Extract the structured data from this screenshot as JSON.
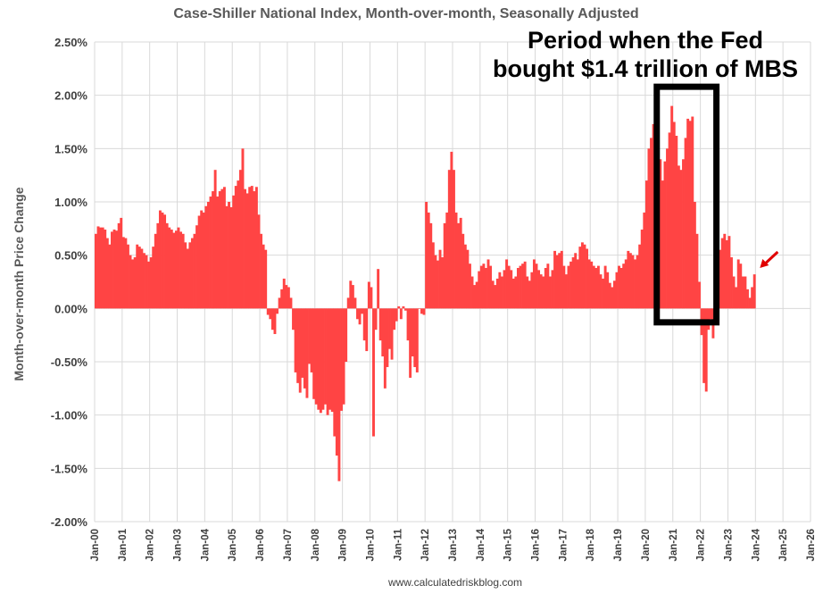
{
  "chart_data": {
    "type": "bar",
    "title": "Case-Shiller National Index, Month-over-month, Seasonally Adjusted",
    "ylabel": "Month-over-month Price Change",
    "xlabel": "",
    "ylim": [
      -2.0,
      2.5
    ],
    "y_ticks": [
      "2.50%",
      "2.00%",
      "1.50%",
      "1.00%",
      "0.50%",
      "0.00%",
      "-0.50%",
      "-1.00%",
      "-1.50%",
      "-2.00%"
    ],
    "y_tick_values": [
      2.5,
      2.0,
      1.5,
      1.0,
      0.5,
      0.0,
      -0.5,
      -1.0,
      -1.5,
      -2.0
    ],
    "x_ticks": [
      "Jan-00",
      "Jan-01",
      "Jan-02",
      "Jan-03",
      "Jan-04",
      "Jan-05",
      "Jan-06",
      "Jan-07",
      "Jan-08",
      "Jan-09",
      "Jan-10",
      "Jan-11",
      "Jan-12",
      "Jan-13",
      "Jan-14",
      "Jan-15",
      "Jan-16",
      "Jan-17",
      "Jan-18",
      "Jan-19",
      "Jan-20",
      "Jan-21",
      "Jan-22",
      "Jan-23",
      "Jan-24",
      "Jan-25",
      "Jan-26"
    ],
    "start": "Jan-00",
    "series": [
      {
        "name": "Month-over-month Price Change (%)",
        "color": "#ff4444",
        "values": [
          0.7,
          0.77,
          0.76,
          0.76,
          0.74,
          0.66,
          0.6,
          0.72,
          0.74,
          0.73,
          0.8,
          0.85,
          0.67,
          0.66,
          0.6,
          0.5,
          0.46,
          0.48,
          0.6,
          0.58,
          0.56,
          0.52,
          0.5,
          0.44,
          0.48,
          0.58,
          0.7,
          0.8,
          0.92,
          0.9,
          0.88,
          0.8,
          0.76,
          0.74,
          0.71,
          0.73,
          0.76,
          0.72,
          0.7,
          0.62,
          0.56,
          0.62,
          0.66,
          0.7,
          0.78,
          0.87,
          0.92,
          0.9,
          0.96,
          1.0,
          1.05,
          1.1,
          1.3,
          1.05,
          1.1,
          1.12,
          1.14,
          0.96,
          1.0,
          0.95,
          1.06,
          1.15,
          1.2,
          1.3,
          1.5,
          1.12,
          1.08,
          1.14,
          1.15,
          1.1,
          1.14,
          0.88,
          0.7,
          0.6,
          0.55,
          -0.06,
          -0.1,
          -0.2,
          -0.24,
          -0.05,
          0.1,
          0.18,
          0.28,
          0.22,
          0.2,
          0.1,
          -0.2,
          -0.6,
          -0.7,
          -0.79,
          -0.65,
          -0.75,
          -0.84,
          -0.52,
          -0.6,
          -0.85,
          -0.9,
          -0.95,
          -0.98,
          -0.95,
          -0.9,
          -1.0,
          -0.95,
          -0.97,
          -1.2,
          -1.38,
          -1.62,
          -0.96,
          -0.9,
          -0.5,
          0.1,
          0.26,
          0.22,
          0.1,
          -0.1,
          -0.15,
          -0.05,
          -0.3,
          -0.4,
          0.25,
          0.2,
          -1.2,
          -0.2,
          0.37,
          -0.3,
          -0.45,
          -0.75,
          -0.55,
          -0.38,
          -0.48,
          -0.2,
          -0.12,
          0.02,
          -0.1,
          0.02,
          -0.02,
          -0.3,
          -0.65,
          -0.45,
          -0.55,
          -0.6,
          0.0,
          -0.05,
          -0.06,
          1.0,
          0.9,
          0.8,
          0.62,
          0.5,
          0.45,
          0.55,
          0.48,
          0.8,
          0.9,
          1.3,
          1.47,
          1.3,
          0.9,
          0.8,
          0.85,
          0.7,
          0.6,
          0.55,
          0.42,
          0.3,
          0.22,
          0.25,
          0.35,
          0.4,
          0.42,
          0.38,
          0.46,
          0.4,
          0.26,
          0.22,
          0.28,
          0.34,
          0.3,
          0.36,
          0.46,
          0.4,
          0.36,
          0.28,
          0.3,
          0.38,
          0.4,
          0.42,
          0.44,
          0.3,
          0.26,
          0.34,
          0.46,
          0.42,
          0.36,
          0.32,
          0.3,
          0.38,
          0.42,
          0.3,
          0.36,
          0.54,
          0.5,
          0.52,
          0.54,
          0.4,
          0.32,
          0.4,
          0.44,
          0.48,
          0.52,
          0.46,
          0.58,
          0.62,
          0.6,
          0.56,
          0.46,
          0.44,
          0.4,
          0.38,
          0.4,
          0.32,
          0.28,
          0.4,
          0.34,
          0.24,
          0.2,
          0.26,
          0.34,
          0.4,
          0.38,
          0.42,
          0.46,
          0.54,
          0.52,
          0.5,
          0.46,
          0.5,
          0.6,
          0.74,
          0.9,
          1.2,
          1.5,
          1.6,
          1.73,
          1.6,
          1.52,
          1.4,
          1.2,
          1.38,
          1.5,
          1.65,
          1.9,
          1.75,
          1.62,
          1.34,
          1.3,
          1.4,
          1.6,
          1.78,
          1.76,
          1.8,
          1.0,
          0.7,
          0.25,
          -0.25,
          -0.7,
          -0.78,
          -0.2,
          -0.1,
          -0.28,
          0.12,
          0.34,
          0.55,
          0.66,
          0.7,
          0.64,
          0.68,
          0.48,
          0.3,
          0.2,
          0.46,
          0.42,
          0.3,
          0.3,
          0.18,
          0.1,
          0.2,
          0.32
        ]
      }
    ],
    "annotation_box": {
      "x_start": "Jun-20",
      "x_end": "Jul-22",
      "y_range": [
        -0.13,
        2.08
      ]
    },
    "annotation_text": [
      "Period when the Fed",
      "bought $1.4 trillion of MBS"
    ],
    "arrow_target": "Dec-23"
  },
  "credit": "www.calculatedriskblog.com",
  "colors": {
    "bar": "#ff4444",
    "grid": "#d9d9d9",
    "arrow": "#e00000",
    "box": "#000000"
  }
}
